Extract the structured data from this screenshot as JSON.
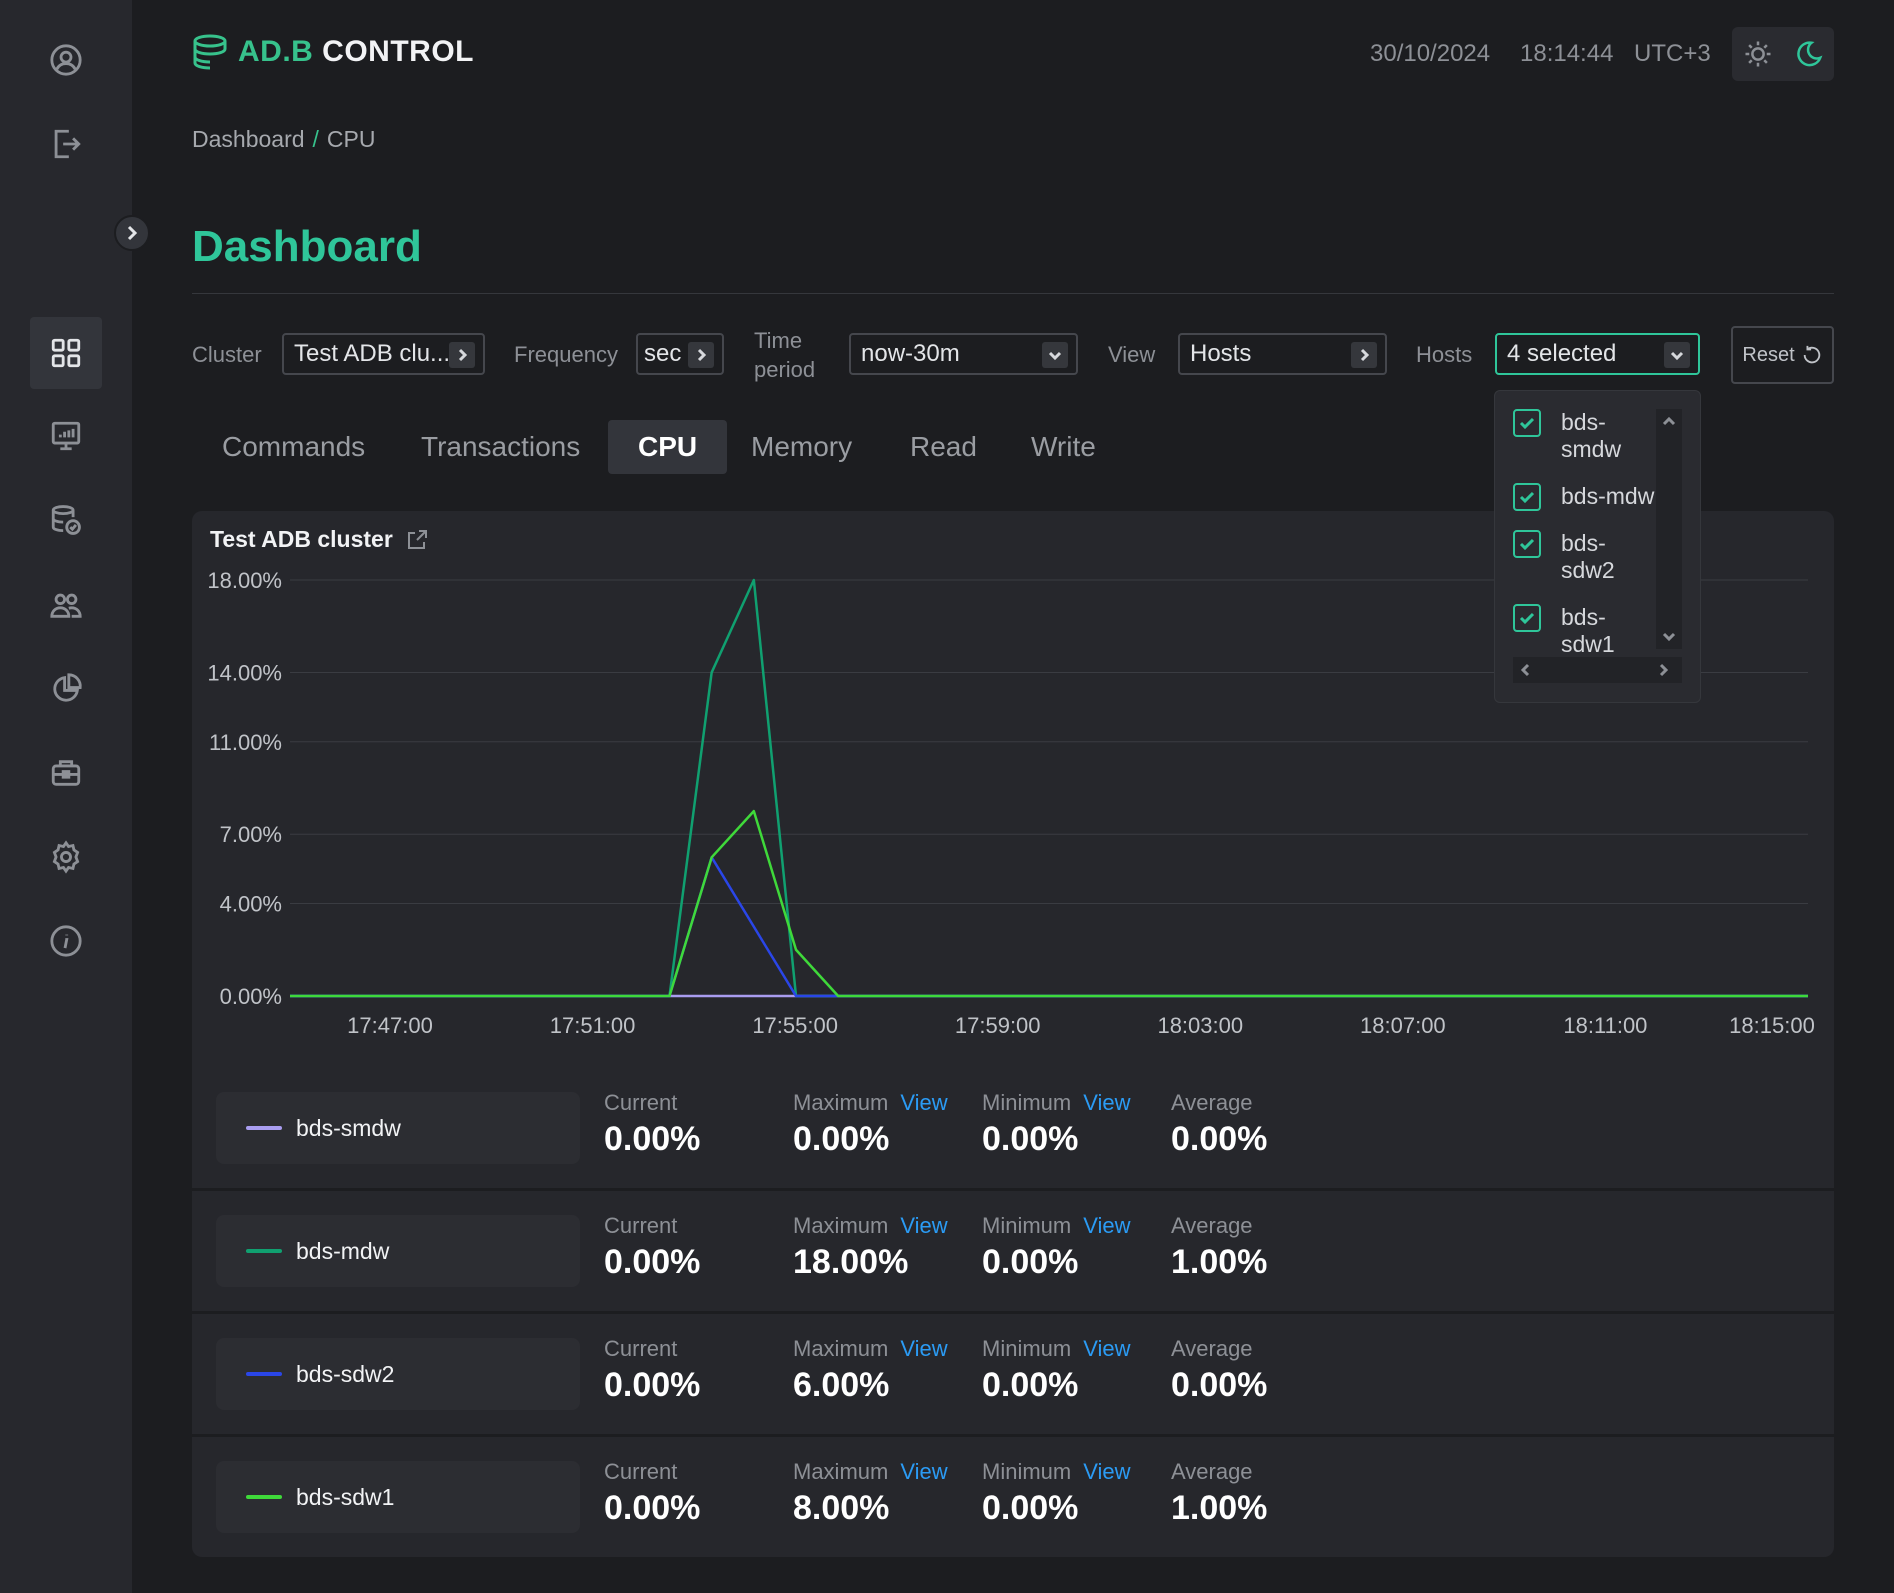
{
  "app": {
    "logo_green": "AD.B",
    "logo_white": " CONTROL"
  },
  "header": {
    "date": "30/10/2024",
    "time": "18:14:44",
    "timezone": "UTC+3"
  },
  "sidebar": {
    "icons": [
      "user-icon",
      "logout-icon",
      "dashboard-icon",
      "monitoring-icon",
      "database-icon",
      "users-icon",
      "reports-icon",
      "toolbox-icon",
      "settings-icon",
      "info-icon"
    ]
  },
  "breadcrumb": {
    "items": [
      "Dashboard",
      "CPU"
    ],
    "separator": "/"
  },
  "page": {
    "title": "Dashboard"
  },
  "filters": {
    "cluster": {
      "label": "Cluster",
      "value": "Test ADB clu..."
    },
    "frequency": {
      "label": "Frequency",
      "value": "sec"
    },
    "time_period": {
      "label_line1": "Time",
      "label_line2": "period",
      "value": "now-30m"
    },
    "view": {
      "label": "View",
      "value": "Hosts"
    },
    "hosts": {
      "label": "Hosts",
      "value": "4 selected"
    },
    "reset_label": "Reset"
  },
  "tabs": [
    "Commands",
    "Transactions",
    "CPU",
    "Memory",
    "Read",
    "Write"
  ],
  "active_tab": "CPU",
  "hosts_dropdown": {
    "items": [
      {
        "line1": "bds-",
        "line2": "smdw",
        "checked": true
      },
      {
        "line1": "bds-mdw",
        "line2": "",
        "checked": true
      },
      {
        "line1": "bds-",
        "line2": "sdw2",
        "checked": true
      },
      {
        "line1": "bds-",
        "line2": "sdw1",
        "checked": true
      }
    ]
  },
  "chart_title": "Test ADB cluster",
  "chart_data": {
    "type": "line",
    "title": "Test ADB cluster",
    "x_labels": [
      "17:47:00",
      "17:51:00",
      "17:55:00",
      "17:59:00",
      "18:03:00",
      "18:07:00",
      "18:11:00",
      "18:15:00"
    ],
    "x_range_minutes": [
      -6,
      30
    ],
    "y_ticks": [
      0,
      4,
      7,
      11,
      14,
      18
    ],
    "y_tick_labels": [
      "0.00%",
      "4.00%",
      "7.00%",
      "11.00%",
      "14.00%",
      "18.00%"
    ],
    "ylim": [
      0,
      18
    ],
    "series": [
      {
        "name": "bds-smdw",
        "color": "#a99df0",
        "x": [
          -6,
          30
        ],
        "y": [
          0,
          0
        ]
      },
      {
        "name": "bds-mdw",
        "color": "#10a070",
        "x": [
          -6,
          3,
          4,
          5,
          6,
          30
        ],
        "y": [
          0,
          0,
          14,
          18,
          0,
          0
        ]
      },
      {
        "name": "bds-sdw2",
        "color": "#2a46e8",
        "x": [
          -6,
          3,
          4,
          6,
          30
        ],
        "y": [
          0,
          0,
          6,
          0,
          0
        ]
      },
      {
        "name": "bds-sdw1",
        "color": "#3fd93a",
        "x": [
          -6,
          3,
          4,
          5,
          6,
          7,
          30
        ],
        "y": [
          0,
          0,
          6,
          8,
          2,
          0,
          0
        ]
      }
    ]
  },
  "stats_labels": {
    "current": "Current",
    "maximum": "Maximum",
    "minimum": "Minimum",
    "average": "Average",
    "view": "View"
  },
  "stats": [
    {
      "host": "bds-smdw",
      "color": "#a99df0",
      "current": "0.00%",
      "maximum": "0.00%",
      "minimum": "0.00%",
      "average": "0.00%"
    },
    {
      "host": "bds-mdw",
      "color": "#10a070",
      "current": "0.00%",
      "maximum": "18.00%",
      "minimum": "0.00%",
      "average": "1.00%"
    },
    {
      "host": "bds-sdw2",
      "color": "#2a46e8",
      "current": "0.00%",
      "maximum": "6.00%",
      "minimum": "0.00%",
      "average": "0.00%"
    },
    {
      "host": "bds-sdw1",
      "color": "#3fd93a",
      "current": "0.00%",
      "maximum": "8.00%",
      "minimum": "0.00%",
      "average": "1.00%"
    }
  ],
  "colors": {
    "accent": "#2fc69a",
    "link": "#2b9bf4",
    "background": "#1c1d20",
    "panel": "#26272c"
  }
}
